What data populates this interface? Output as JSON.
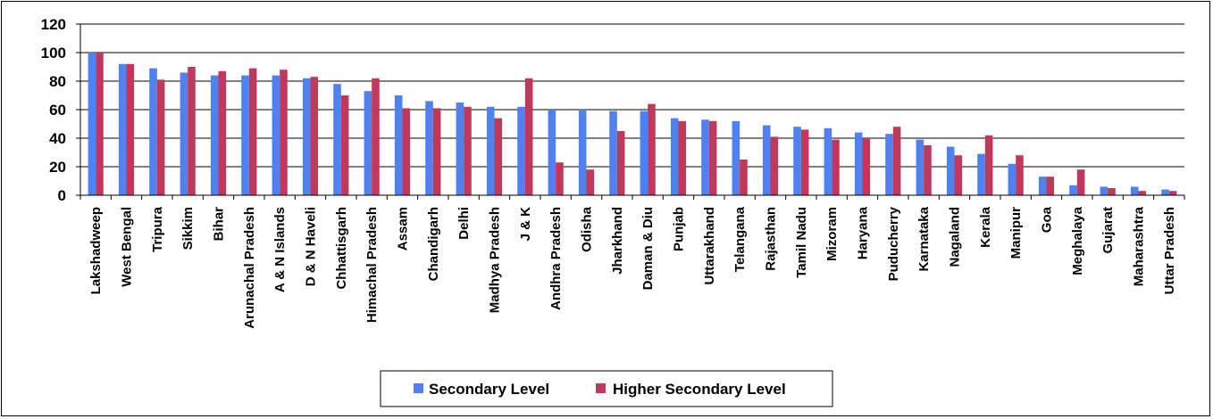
{
  "chart_data": {
    "type": "bar",
    "title": "",
    "xlabel": "",
    "ylabel": "",
    "ylim": [
      0,
      120
    ],
    "yticks": [
      0,
      20,
      40,
      60,
      80,
      100,
      120
    ],
    "grid": true,
    "legend_position": "bottom",
    "categories": [
      "Lakshadweep",
      "West Bengal",
      "Tripura",
      "Sikkim",
      "Bihar",
      "Arunachal Pradesh",
      "A & N Islands",
      "D & N Haveli",
      "Chhattisgarh",
      "Himachal Pradesh",
      "Assam",
      "Chandigarh",
      "Delhi",
      "Madhya Pradesh",
      "J & K",
      "Andhra Pradesh",
      "Odisha",
      "Jharkhand",
      "Daman & Diu",
      "Punjab",
      "Uttarakhand",
      "Telangana",
      "Rajasthan",
      "Tamil Nadu",
      "Mizoram",
      "Haryana",
      "Puducherry",
      "Karnataka",
      "Nagaland",
      "Kerala",
      "Manipur",
      "Goa",
      "Meghalaya",
      "Gujarat",
      "Maharashtra",
      "Uttar Pradesh"
    ],
    "series": [
      {
        "name": "Secondary Level",
        "color": "#4f81f0",
        "values": [
          100,
          92,
          89,
          86,
          84,
          84,
          84,
          82,
          78,
          73,
          70,
          66,
          65,
          62,
          62,
          60,
          60,
          59,
          59,
          54,
          53,
          52,
          49,
          48,
          47,
          44,
          43,
          39,
          34,
          29,
          22,
          13,
          7,
          6,
          6,
          4
        ]
      },
      {
        "name": "Higher Secondary Level",
        "color": "#c0395a",
        "values": [
          100,
          92,
          81,
          90,
          87,
          89,
          88,
          83,
          70,
          82,
          61,
          61,
          62,
          54,
          82,
          23,
          18,
          45,
          64,
          52,
          52,
          25,
          41,
          46,
          39,
          40,
          48,
          35,
          28,
          42,
          28,
          13,
          18,
          5,
          3,
          3
        ]
      }
    ]
  }
}
